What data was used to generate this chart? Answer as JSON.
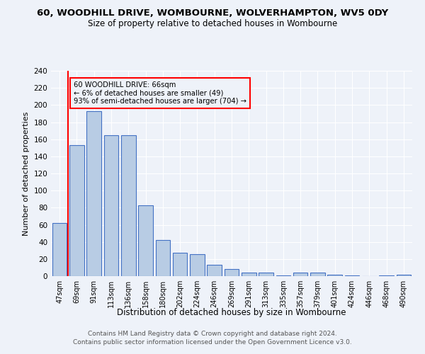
{
  "title": "60, WOODHILL DRIVE, WOMBOURNE, WOLVERHAMPTON, WV5 0DY",
  "subtitle": "Size of property relative to detached houses in Wombourne",
  "xlabel": "Distribution of detached houses by size in Wombourne",
  "ylabel": "Number of detached properties",
  "categories": [
    "47sqm",
    "69sqm",
    "91sqm",
    "113sqm",
    "136sqm",
    "158sqm",
    "180sqm",
    "202sqm",
    "224sqm",
    "246sqm",
    "269sqm",
    "291sqm",
    "313sqm",
    "335sqm",
    "357sqm",
    "379sqm",
    "401sqm",
    "424sqm",
    "446sqm",
    "468sqm",
    "490sqm"
  ],
  "values": [
    62,
    153,
    193,
    165,
    165,
    83,
    42,
    27,
    26,
    13,
    8,
    4,
    4,
    1,
    4,
    4,
    2,
    1,
    0,
    1,
    2
  ],
  "bar_color": "#b8cce4",
  "bar_edge_color": "#4472c4",
  "highlight_color": "#FF0000",
  "highlight_index": 1,
  "annotation_text": "60 WOODHILL DRIVE: 66sqm\n← 6% of detached houses are smaller (49)\n93% of semi-detached houses are larger (704) →",
  "annotation_box_color": "#FF0000",
  "ylim": [
    0,
    240
  ],
  "yticks": [
    0,
    20,
    40,
    60,
    80,
    100,
    120,
    140,
    160,
    180,
    200,
    220,
    240
  ],
  "footer1": "Contains HM Land Registry data © Crown copyright and database right 2024.",
  "footer2": "Contains public sector information licensed under the Open Government Licence v3.0.",
  "bg_color": "#eef2f9",
  "grid_color": "#ffffff"
}
